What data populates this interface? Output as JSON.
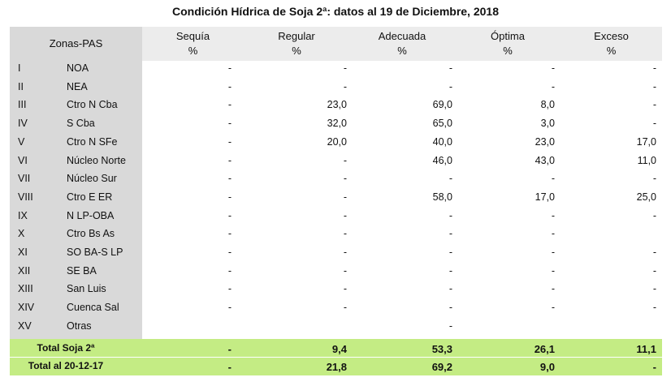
{
  "title": "Condición Hídrica de Soja 2ª: datos al 19 de Diciembre, 2018",
  "header": {
    "zone": "Zonas-PAS",
    "columns": [
      {
        "name": "Sequía",
        "unit": "%"
      },
      {
        "name": "Regular",
        "unit": "%"
      },
      {
        "name": "Adecuada",
        "unit": "%"
      },
      {
        "name": "Óptima",
        "unit": "%"
      },
      {
        "name": "Exceso",
        "unit": "%"
      }
    ]
  },
  "rows": [
    {
      "num": "I",
      "zone": "NOA",
      "values": [
        "-",
        "-",
        "-",
        "-",
        "-"
      ]
    },
    {
      "num": "II",
      "zone": "NEA",
      "values": [
        "-",
        "-",
        "-",
        "-",
        "-"
      ]
    },
    {
      "num": "III",
      "zone": "Ctro N Cba",
      "values": [
        "-",
        "23,0",
        "69,0",
        "8,0",
        "-"
      ]
    },
    {
      "num": "IV",
      "zone": "S Cba",
      "values": [
        "-",
        "32,0",
        "65,0",
        "3,0",
        "-"
      ]
    },
    {
      "num": "V",
      "zone": "Ctro N SFe",
      "values": [
        "-",
        "20,0",
        "40,0",
        "23,0",
        "17,0"
      ]
    },
    {
      "num": "VI",
      "zone": "Núcleo Norte",
      "values": [
        "-",
        "-",
        "46,0",
        "43,0",
        "11,0"
      ]
    },
    {
      "num": "VII",
      "zone": "Núcleo Sur",
      "values": [
        "-",
        "-",
        "-",
        "-",
        "-"
      ]
    },
    {
      "num": "VIII",
      "zone": "Ctro E ER",
      "values": [
        "-",
        "-",
        "58,0",
        "17,0",
        "25,0"
      ]
    },
    {
      "num": "IX",
      "zone": "N LP-OBA",
      "values": [
        "-",
        "-",
        "-",
        "-",
        "-"
      ]
    },
    {
      "num": "X",
      "zone": "Ctro Bs As",
      "values": [
        "-",
        "-",
        "-",
        "-",
        null
      ]
    },
    {
      "num": "XI",
      "zone": "SO BA-S LP",
      "values": [
        "-",
        "-",
        "-",
        "-",
        "-"
      ]
    },
    {
      "num": "XII",
      "zone": "SE BA",
      "values": [
        "-",
        "-",
        "-",
        "-",
        "-"
      ]
    },
    {
      "num": "XIII",
      "zone": "San Luis",
      "values": [
        "-",
        "-",
        "-",
        "-",
        "-"
      ]
    },
    {
      "num": "XIV",
      "zone": "Cuenca Sal",
      "values": [
        "-",
        "-",
        "-",
        "-",
        "-"
      ]
    },
    {
      "num": "XV",
      "zone": "Otras",
      "values": [
        null,
        null,
        "-",
        null,
        null
      ]
    }
  ],
  "totals": [
    {
      "label": "Total Soja 2ª",
      "values": [
        "-",
        "9,4",
        "53,3",
        "26,1",
        "11,1"
      ]
    },
    {
      "label": "Total al 20-12-17",
      "values": [
        "-",
        "21,8",
        "69,2",
        "9,0",
        "-"
      ]
    }
  ]
}
